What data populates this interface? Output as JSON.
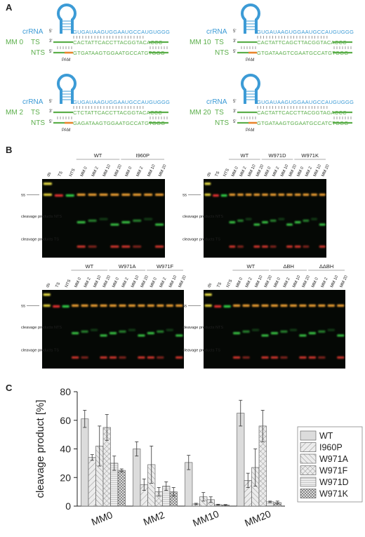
{
  "panels": {
    "a": "A",
    "b": "B",
    "c": "C"
  },
  "panel_a": {
    "crRNA_label": "crRNA",
    "ts_label": "TS",
    "nts_label": "NTS",
    "pam_label": "PAM",
    "five_prime": "5'",
    "three_prime": "3'",
    "crRNA_seq": "GUGAUAAGUGGAAUGCCAUGUGGG",
    "constructs": [
      {
        "name": "MM 0",
        "ts": "CACTATTCACCTTACGGTACACCC",
        "nts": "GTGATAAGTGGAATGCCATGTGGG"
      },
      {
        "name": "MM 10",
        "ts": "CACTATTCAGCTTACGGTACACCC",
        "nts": "GTGATAAGTCGAATGCCATGTGGG"
      },
      {
        "name": "MM 2",
        "ts": "CTCTATTCACCTTACGGTACACCC",
        "nts": "GAGATAAGTGGAATGCCATGTGGG"
      },
      {
        "name": "MM 20",
        "ts": "CACTATTCACCTTACGGTAGACCC",
        "nts": "GTGATAAGTGGAATGCCATCTGGG"
      }
    ]
  },
  "panel_b": {
    "lane_controls": [
      "ds",
      "TS",
      "NTS"
    ],
    "mm_lanes": [
      "MM 0",
      "MM 2",
      "MM 10",
      "MM 20"
    ],
    "gel_labels": {
      "ss": "ss",
      "products_nts": "cleavage products NTS",
      "products_ts": "cleavage products TS"
    },
    "gels": [
      {
        "groups": [
          "WT",
          "I960P"
        ]
      },
      {
        "groups": [
          "WT",
          "W971D",
          "W971K"
        ]
      },
      {
        "groups": [
          "WT",
          "W971A",
          "W971F"
        ]
      },
      {
        "groups": [
          "WT",
          "ΔBH",
          "ΔΔBH"
        ]
      }
    ]
  },
  "chart_data": {
    "type": "bar",
    "ylabel": "cleavage product [%]",
    "ylim": [
      0,
      80
    ],
    "yticks": [
      0,
      20,
      40,
      60,
      80
    ],
    "categories": [
      "MM0",
      "MM2",
      "MM10",
      "MM20"
    ],
    "legend_position": "right",
    "series": [
      {
        "name": "WT",
        "values": [
          61,
          40,
          30.5,
          65
        ],
        "errors": [
          6,
          5,
          5,
          9
        ]
      },
      {
        "name": "I960P",
        "values": [
          34,
          15,
          1.5,
          18
        ],
        "errors": [
          2,
          4,
          0.5,
          5
        ]
      },
      {
        "name": "W971A",
        "values": [
          42,
          29,
          6.5,
          27
        ],
        "errors": [
          14,
          13,
          3,
          13
        ]
      },
      {
        "name": "W971F",
        "values": [
          55,
          10,
          4.5,
          56
        ],
        "errors": [
          9,
          3,
          2,
          11
        ]
      },
      {
        "name": "W971D",
        "values": [
          30,
          14,
          1,
          3
        ],
        "errors": [
          5,
          3,
          0.3,
          0.5
        ]
      },
      {
        "name": "W971K",
        "values": [
          25,
          10,
          0.8,
          2.5
        ],
        "errors": [
          1,
          3,
          0.3,
          1
        ]
      }
    ]
  }
}
